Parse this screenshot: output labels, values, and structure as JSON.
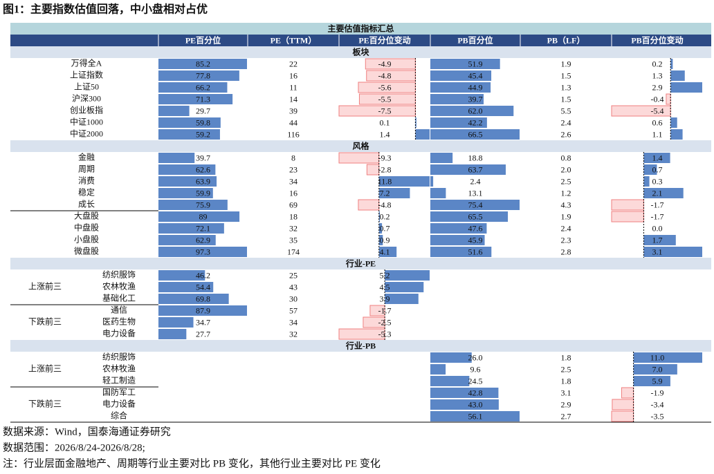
{
  "title": "图1：主要指数估值回落，中小盘相对占优",
  "header": {
    "title": "主要估值指标汇总",
    "columns": [
      "PE百分位",
      "PE（TTM）",
      "PE百分位变动",
      "PB百分位",
      "PB（LF）",
      "PB百分位变动"
    ]
  },
  "sections": [
    {
      "title": "板块",
      "rows": [
        [
          "万得全A",
          "85.2",
          "22",
          "-4.9",
          "51.9",
          "1.9",
          "0.2"
        ],
        [
          "上证指数",
          "77.8",
          "16",
          "-4.8",
          "45.4",
          "1.5",
          "1.3"
        ],
        [
          "上证50",
          "66.2",
          "11",
          "-5.6",
          "44.9",
          "1.3",
          "2.9"
        ],
        [
          "沪深300",
          "71.3",
          "14",
          "-5.5",
          "39.7",
          "1.5",
          "-0.4"
        ],
        [
          "创业板指",
          "29.7",
          "39",
          "-7.5",
          "62.0",
          "5.5",
          "-5.4"
        ],
        [
          "中证1000",
          "59.8",
          "44",
          "0.1",
          "42.2",
          "2.4",
          "0.6"
        ],
        [
          "中证2000",
          "59.2",
          "116",
          "1.4",
          "66.5",
          "2.6",
          "1.1"
        ]
      ]
    },
    {
      "title": "风格",
      "rows": [
        [
          "金融",
          "39.7",
          "8",
          "-9.3",
          "18.8",
          "0.8",
          "1.4"
        ],
        [
          "周期",
          "62.6",
          "23",
          "-2.8",
          "63.7",
          "2.0",
          "0.7"
        ],
        [
          "消费",
          "63.9",
          "34",
          "11.8",
          "2.4",
          "2.5",
          "0.3"
        ],
        [
          "稳定",
          "59.9",
          "16",
          "7.2",
          "13.1",
          "1.2",
          "2.1"
        ],
        [
          "成长",
          "75.9",
          "69",
          "-4.8",
          "75.4",
          "4.3",
          "-1.7"
        ],
        [
          "大盘股",
          "89",
          "18",
          "0.2",
          "65.5",
          "1.9",
          "-1.7"
        ],
        [
          "中盘股",
          "72.1",
          "32",
          "0.7",
          "47.6",
          "2.4",
          "0.0"
        ],
        [
          "小盘股",
          "62.9",
          "35",
          "0.9",
          "45.9",
          "2.3",
          "1.7"
        ],
        [
          "微盘股",
          "97.3",
          "174",
          "4.1",
          "51.6",
          "2.8",
          "3.1"
        ]
      ]
    },
    {
      "title": "行业-PE",
      "groups": [
        {
          "label": "上涨前三",
          "rows": [
            [
              "纺织服饰",
              "46.2",
              "25",
              "5.2",
              null,
              null,
              null
            ],
            [
              "农林牧渔",
              "54.4",
              "43",
              "4.5",
              null,
              null,
              null
            ],
            [
              "基础化工",
              "69.8",
              "30",
              "3.9",
              null,
              null,
              null
            ]
          ]
        },
        {
          "label": "下跌前三",
          "rows": [
            [
              "通信",
              "87.9",
              "57",
              "-1.7",
              null,
              null,
              null
            ],
            [
              "医药生物",
              "34.7",
              "34",
              "-2.5",
              null,
              null,
              null
            ],
            [
              "电力设备",
              "27.7",
              "32",
              "-5.3",
              null,
              null,
              null
            ]
          ]
        }
      ]
    },
    {
      "title": "行业-PB",
      "groups": [
        {
          "label": "上涨前三",
          "rows": [
            [
              "纺织服饰",
              null,
              null,
              null,
              "26.0",
              "1.8",
              "11.0"
            ],
            [
              "农林牧渔",
              null,
              null,
              null,
              "9.6",
              "2.5",
              "7.0"
            ],
            [
              "轻工制造",
              null,
              null,
              null,
              "24.5",
              "1.8",
              "5.9"
            ]
          ]
        },
        {
          "label": "下跌前三",
          "rows": [
            [
              "国防军工",
              null,
              null,
              null,
              "42.8",
              "3.1",
              "-1.9"
            ],
            [
              "电力设备",
              null,
              null,
              null,
              "43.0",
              "2.9",
              "-3.4"
            ],
            [
              "综合",
              null,
              null,
              null,
              "56.1",
              "2.7",
              "-3.5"
            ]
          ]
        }
      ]
    }
  ],
  "notes": [
    "数据来源：Wind，国泰海通证券研究",
    "数据范围：2026/8/24-2026/8/28;",
    "注：行业层面金融地产、周期等行业主要对比 PB 变化，其他行业主要对比 PE 变化"
  ]
}
